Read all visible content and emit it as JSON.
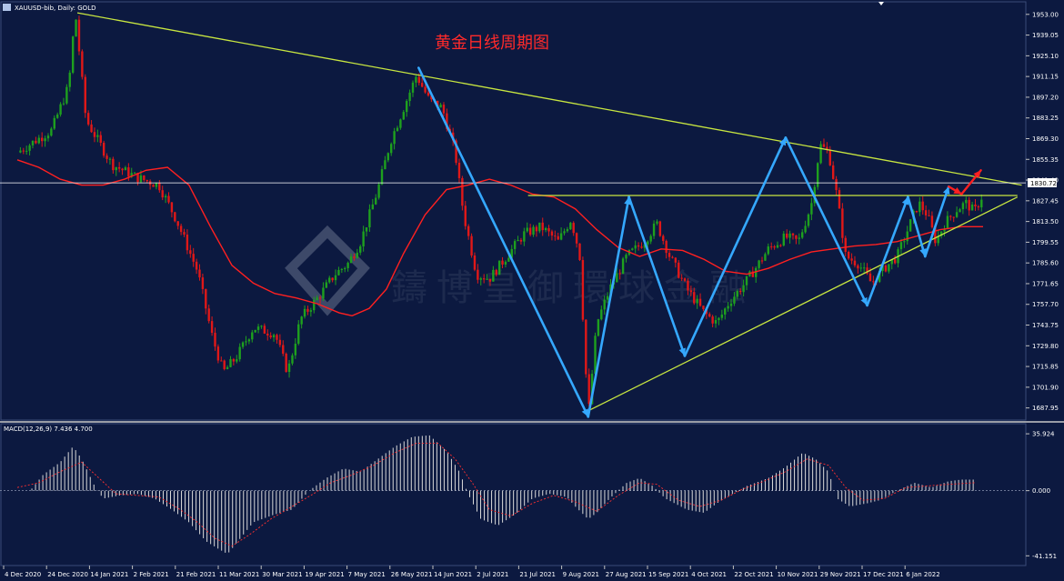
{
  "header": {
    "symbol_label": "XAUUSD-bib, Daily: GOLD",
    "current_price": "1830.72"
  },
  "title_cn": "黄金日线周期图",
  "watermark_text": "鑄博皇御環球金融",
  "macd": {
    "label": "MACD(12,26,9) 7.436 4.700",
    "yticks": [
      "35.924",
      "0.000",
      "-41.151"
    ]
  },
  "colors": {
    "background": "#0c1940",
    "up_candle": "#1ea01e",
    "down_candle": "#e01818",
    "ma_line": "#ff2020",
    "trend_lines": "#c8e640",
    "wave_arrows": "#35a8ff",
    "forecast_arrow": "#ff2020",
    "price_line": "#ffffff",
    "macd_hist": "#d8d8d8",
    "macd_signal": "#ff3030"
  },
  "chart_data": {
    "type": "candlestick",
    "x_dates": [
      "4 Dec 2020",
      "24 Dec 2020",
      "14 Jan 2021",
      "2 Feb 2021",
      "21 Feb 2021",
      "11 Mar 2021",
      "30 Mar 2021",
      "19 Apr 2021",
      "7 May 2021",
      "26 May 2021",
      "14 Jun 2021",
      "2 Jul 2021",
      "21 Jul 2021",
      "9 Aug 2021",
      "27 Aug 2021",
      "15 Sep 2021",
      "4 Oct 2021",
      "22 Oct 2021",
      "10 Nov 2021",
      "29 Nov 2021",
      "17 Dec 2021",
      "6 Jan 2022"
    ],
    "yticks": [
      "1953.00",
      "1939.05",
      "1925.10",
      "1911.15",
      "1897.20",
      "1883.25",
      "1869.30",
      "1855.35",
      "1841.40",
      "1827.45",
      "1813.50",
      "1799.55",
      "1785.60",
      "1771.65",
      "1757.70",
      "1743.75",
      "1729.80",
      "1715.85",
      "1701.90",
      "1687.95"
    ],
    "ylim": [
      1681,
      1959
    ],
    "price_path": [
      [
        0,
        1860
      ],
      [
        0.8,
        1875
      ],
      [
        1.2,
        1905
      ],
      [
        1.35,
        1955
      ],
      [
        1.6,
        1882
      ],
      [
        2.2,
        1852
      ],
      [
        2.8,
        1843
      ],
      [
        3.3,
        1838
      ],
      [
        3.7,
        1815
      ],
      [
        4.2,
        1780
      ],
      [
        4.55,
        1735
      ],
      [
        4.8,
        1712
      ],
      [
        5.1,
        1722
      ],
      [
        5.5,
        1742
      ],
      [
        6.0,
        1738
      ],
      [
        6.3,
        1712
      ],
      [
        6.6,
        1748
      ],
      [
        7.0,
        1762
      ],
      [
        7.4,
        1778
      ],
      [
        7.7,
        1785
      ],
      [
        8.0,
        1800
      ],
      [
        8.4,
        1835
      ],
      [
        8.7,
        1868
      ],
      [
        9.0,
        1890
      ],
      [
        9.3,
        1912
      ],
      [
        9.6,
        1895
      ],
      [
        9.9,
        1890
      ],
      [
        10.2,
        1860
      ],
      [
        10.4,
        1818
      ],
      [
        10.7,
        1778
      ],
      [
        11.0,
        1775
      ],
      [
        11.4,
        1790
      ],
      [
        11.8,
        1805
      ],
      [
        12.2,
        1810
      ],
      [
        12.6,
        1800
      ],
      [
        12.9,
        1815
      ],
      [
        13.1,
        1792
      ],
      [
        13.3,
        1682
      ],
      [
        13.5,
        1745
      ],
      [
        13.8,
        1768
      ],
      [
        14.2,
        1790
      ],
      [
        14.6,
        1800
      ],
      [
        14.9,
        1812
      ],
      [
        15.2,
        1790
      ],
      [
        15.6,
        1768
      ],
      [
        16.0,
        1752
      ],
      [
        16.3,
        1745
      ],
      [
        16.6,
        1760
      ],
      [
        16.9,
        1770
      ],
      [
        17.2,
        1782
      ],
      [
        17.5,
        1795
      ],
      [
        17.9,
        1803
      ],
      [
        18.2,
        1800
      ],
      [
        18.5,
        1825
      ],
      [
        18.7,
        1865
      ],
      [
        18.9,
        1860
      ],
      [
        19.1,
        1830
      ],
      [
        19.3,
        1790
      ],
      [
        19.6,
        1785
      ],
      [
        19.9,
        1772
      ],
      [
        20.2,
        1782
      ],
      [
        20.5,
        1790
      ],
      [
        20.8,
        1812
      ],
      [
        21.0,
        1826
      ],
      [
        21.2,
        1818
      ],
      [
        21.4,
        1800
      ],
      [
        21.6,
        1812
      ],
      [
        21.9,
        1822
      ],
      [
        22.1,
        1826
      ],
      [
        22.3,
        1820
      ],
      [
        22.5,
        1832
      ]
    ],
    "ma_series": [
      [
        0,
        1855
      ],
      [
        0.5,
        1850
      ],
      [
        1.0,
        1842
      ],
      [
        1.5,
        1838
      ],
      [
        2.0,
        1838
      ],
      [
        2.5,
        1842
      ],
      [
        3.0,
        1848
      ],
      [
        3.5,
        1850
      ],
      [
        4.0,
        1838
      ],
      [
        4.5,
        1810
      ],
      [
        5.0,
        1784
      ],
      [
        5.5,
        1772
      ],
      [
        6.0,
        1765
      ],
      [
        6.5,
        1762
      ],
      [
        7.0,
        1758
      ],
      [
        7.5,
        1752
      ],
      [
        7.8,
        1750
      ],
      [
        8.2,
        1755
      ],
      [
        8.6,
        1768
      ],
      [
        9.0,
        1792
      ],
      [
        9.5,
        1818
      ],
      [
        10.0,
        1835
      ],
      [
        10.5,
        1838
      ],
      [
        11.0,
        1842
      ],
      [
        11.5,
        1838
      ],
      [
        12.0,
        1832
      ],
      [
        12.5,
        1830
      ],
      [
        13.0,
        1822
      ],
      [
        13.5,
        1808
      ],
      [
        14.0,
        1796
      ],
      [
        14.5,
        1790
      ],
      [
        15.0,
        1795
      ],
      [
        15.5,
        1794
      ],
      [
        16.0,
        1788
      ],
      [
        16.5,
        1780
      ],
      [
        17.0,
        1778
      ],
      [
        17.5,
        1782
      ],
      [
        18.0,
        1788
      ],
      [
        18.5,
        1793
      ],
      [
        19.0,
        1795
      ],
      [
        19.5,
        1797
      ],
      [
        20.0,
        1798
      ],
      [
        20.5,
        1800
      ],
      [
        21.0,
        1804
      ],
      [
        21.5,
        1808
      ],
      [
        22.0,
        1810
      ],
      [
        22.5,
        1810
      ]
    ],
    "wave_points": [
      [
        9.35,
        1917
      ],
      [
        13.3,
        1682
      ],
      [
        14.25,
        1830
      ],
      [
        15.55,
        1723
      ],
      [
        17.9,
        1870
      ],
      [
        19.8,
        1757
      ],
      [
        20.75,
        1830
      ],
      [
        21.15,
        1790
      ],
      [
        21.7,
        1837
      ]
    ],
    "forecast_path": [
      [
        21.7,
        1837
      ],
      [
        22.0,
        1832
      ],
      [
        22.45,
        1848
      ]
    ],
    "resistance_line": [
      [
        1.4,
        1954
      ],
      [
        23.4,
        1838
      ]
    ],
    "support_line": [
      [
        13.3,
        1686
      ],
      [
        23.3,
        1830
      ]
    ],
    "horizontal_line": [
      [
        11.9,
        1831
      ],
      [
        23.3,
        1831
      ]
    ],
    "current_price_level": 1839.5,
    "macd_ylim": [
      -45,
      40
    ],
    "macd_hist_path": [
      [
        0,
        0
      ],
      [
        0.3,
        0
      ],
      [
        0.6,
        10
      ],
      [
        1.0,
        18
      ],
      [
        1.3,
        28
      ],
      [
        1.5,
        20
      ],
      [
        1.8,
        3
      ],
      [
        2.0,
        -5
      ],
      [
        2.4,
        -3
      ],
      [
        2.8,
        -2
      ],
      [
        3.2,
        -5
      ],
      [
        3.6,
        -12
      ],
      [
        4.0,
        -20
      ],
      [
        4.4,
        -32
      ],
      [
        4.7,
        -37
      ],
      [
        4.9,
        -40
      ],
      [
        5.2,
        -30
      ],
      [
        5.5,
        -20
      ],
      [
        6.0,
        -15
      ],
      [
        6.4,
        -12
      ],
      [
        6.8,
        0
      ],
      [
        7.2,
        8
      ],
      [
        7.6,
        14
      ],
      [
        8.0,
        12
      ],
      [
        8.4,
        20
      ],
      [
        8.8,
        28
      ],
      [
        9.2,
        34
      ],
      [
        9.6,
        35
      ],
      [
        10.0,
        25
      ],
      [
        10.3,
        12
      ],
      [
        10.5,
        -2
      ],
      [
        10.8,
        -18
      ],
      [
        11.2,
        -22
      ],
      [
        11.6,
        -15
      ],
      [
        12.0,
        -5
      ],
      [
        12.4,
        -2
      ],
      [
        12.8,
        -4
      ],
      [
        13.0,
        -10
      ],
      [
        13.3,
        -18
      ],
      [
        13.5,
        -14
      ],
      [
        13.8,
        -5
      ],
      [
        14.2,
        5
      ],
      [
        14.5,
        8
      ],
      [
        14.8,
        3
      ],
      [
        15.1,
        -5
      ],
      [
        15.6,
        -12
      ],
      [
        16.0,
        -14
      ],
      [
        16.3,
        -8
      ],
      [
        16.6,
        -3
      ],
      [
        17.0,
        3
      ],
      [
        17.5,
        8
      ],
      [
        17.9,
        15
      ],
      [
        18.3,
        24
      ],
      [
        18.6,
        20
      ],
      [
        18.9,
        12
      ],
      [
        19.1,
        -5
      ],
      [
        19.4,
        -10
      ],
      [
        19.8,
        -8
      ],
      [
        20.1,
        -6
      ],
      [
        20.5,
        0
      ],
      [
        20.9,
        5
      ],
      [
        21.3,
        2
      ],
      [
        21.7,
        6
      ],
      [
        22.0,
        7
      ],
      [
        22.3,
        7
      ]
    ],
    "macd_signal_path": [
      [
        0,
        2
      ],
      [
        0.5,
        5
      ],
      [
        1.0,
        12
      ],
      [
        1.5,
        18
      ],
      [
        1.9,
        8
      ],
      [
        2.3,
        -2
      ],
      [
        2.8,
        -3
      ],
      [
        3.3,
        -4
      ],
      [
        3.8,
        -12
      ],
      [
        4.2,
        -20
      ],
      [
        4.6,
        -30
      ],
      [
        5.0,
        -35
      ],
      [
        5.4,
        -28
      ],
      [
        5.9,
        -18
      ],
      [
        6.4,
        -10
      ],
      [
        6.9,
        -2
      ],
      [
        7.3,
        5
      ],
      [
        7.8,
        10
      ],
      [
        8.3,
        16
      ],
      [
        8.8,
        24
      ],
      [
        9.3,
        30
      ],
      [
        9.8,
        30
      ],
      [
        10.2,
        20
      ],
      [
        10.6,
        5
      ],
      [
        11.0,
        -12
      ],
      [
        11.5,
        -16
      ],
      [
        12.0,
        -8
      ],
      [
        12.5,
        -3
      ],
      [
        13.0,
        -7
      ],
      [
        13.5,
        -13
      ],
      [
        14.0,
        -3
      ],
      [
        14.5,
        5
      ],
      [
        14.9,
        4
      ],
      [
        15.4,
        -6
      ],
      [
        15.9,
        -10
      ],
      [
        16.4,
        -6
      ],
      [
        16.9,
        1
      ],
      [
        17.4,
        6
      ],
      [
        17.9,
        12
      ],
      [
        18.4,
        20
      ],
      [
        18.9,
        16
      ],
      [
        19.3,
        2
      ],
      [
        19.7,
        -6
      ],
      [
        20.2,
        -5
      ],
      [
        20.7,
        2
      ],
      [
        21.2,
        3
      ],
      [
        21.7,
        4
      ],
      [
        22.3,
        5
      ]
    ]
  }
}
